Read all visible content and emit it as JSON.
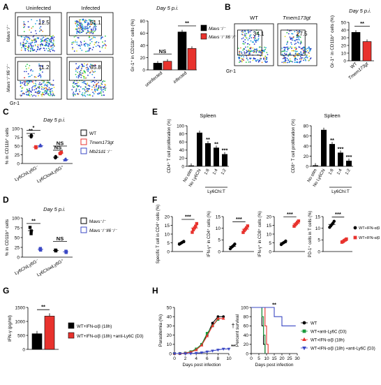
{
  "panels": [
    {
      "id": "A",
      "letter": "A"
    },
    {
      "id": "B",
      "letter": "B"
    },
    {
      "id": "C",
      "letter": "C"
    },
    {
      "id": "D",
      "letter": "D"
    },
    {
      "id": "E",
      "letter": "E"
    },
    {
      "id": "F",
      "letter": "F"
    },
    {
      "id": "G",
      "letter": "G"
    },
    {
      "id": "H",
      "letter": "H"
    }
  ],
  "facs": {
    "A": {
      "col_headers": [
        "Uninfected",
        "Infected"
      ],
      "row_labels": [
        "Mavs⁻/⁻",
        "Mavs⁻/⁻Il6⁻/⁻"
      ],
      "values": [
        "12.5",
        "61.1",
        "11.2",
        "35.8"
      ],
      "y_axis_label": "Gr-1"
    },
    "B": {
      "col_headers": [
        "WT",
        "Tmem173gt"
      ],
      "values": [
        "34.1",
        "27.5"
      ],
      "y_axis_label": "Gr-1"
    }
  },
  "chart_data": [
    {
      "id": "A-bar",
      "type": "bar",
      "title": "Day 5 p.i.",
      "ylabel": "Gr-1⁺ in CD11b⁺ cells (%)",
      "ylim": [
        0,
        80
      ],
      "yticks": [
        0,
        20,
        40,
        60,
        80
      ],
      "categories": [
        "uninfected",
        "infected"
      ],
      "series": [
        {
          "name": "Mavs⁻/⁻",
          "color": "#000000",
          "values": [
            11,
            62
          ]
        },
        {
          "name": "Mavs⁻/⁻Il6⁻/⁻",
          "color": "#e8322d",
          "values": [
            14,
            35
          ]
        }
      ],
      "annotations": [
        "NS",
        "**"
      ],
      "legend": "right"
    },
    {
      "id": "B-bar",
      "type": "bar",
      "title": "Day 5 p.i.",
      "ylabel": "Gr-1⁺ in CD11b⁺ cells (%)",
      "ylim": [
        0,
        50
      ],
      "yticks": [
        0,
        10,
        20,
        30,
        40,
        50
      ],
      "categories": [
        "WT",
        "Tmem173gt"
      ],
      "values": [
        37,
        25
      ],
      "colors": [
        "#000000",
        "#e8322d"
      ],
      "annotations": [
        "**"
      ]
    },
    {
      "id": "C-scatter",
      "type": "scatter",
      "title": "Day 5 p.i.",
      "ylabel": "% in CD11b⁺ cells",
      "ylim": [
        0,
        100
      ],
      "yticks": [
        0,
        25,
        50,
        75,
        100
      ],
      "categories": [
        "Ly6ChiLy6G⁻",
        "Ly6ClowLy6G⁺"
      ],
      "series": [
        {
          "name": "WT",
          "color": "#000000",
          "marker": "circle",
          "values": [
            [
              76,
              79,
              81
            ],
            [
              16,
              18,
              20
            ]
          ]
        },
        {
          "name": "Tmem173gt",
          "color": "#e8322d",
          "marker": "square",
          "values": [
            [
              45,
              47,
              48
            ],
            [
              28,
              30,
              32
            ]
          ]
        },
        {
          "name": "Mb21d1⁻/⁻",
          "color": "#3b48c4",
          "marker": "triangle",
          "values": [
            [
              50,
              51,
              52
            ],
            [
              10,
              11,
              12
            ]
          ]
        }
      ],
      "annotations": [
        "*",
        "**",
        "NS",
        "NS"
      ],
      "legend": "right"
    },
    {
      "id": "D-scatter",
      "type": "scatter",
      "title": "Day 5 p.i.",
      "ylabel": "% in CD11b⁺ cells",
      "ylim": [
        0,
        100
      ],
      "yticks": [
        0,
        25,
        50,
        75,
        100
      ],
      "categories": [
        "Ly6ChiLy6G⁻",
        "Ly6ClowLy6G⁺"
      ],
      "series": [
        {
          "name": "Mavs⁻/⁻",
          "color": "#000000",
          "marker": "square",
          "values": [
            [
              60,
              67,
              76
            ],
            [
              16,
              17,
              18
            ]
          ]
        },
        {
          "name": "Mavs⁻/⁻Il6⁻/⁻",
          "color": "#3b48c4",
          "marker": "square",
          "values": [
            [
              18,
              20,
              22
            ],
            [
              12,
              14,
              15
            ]
          ]
        }
      ],
      "annotations": [
        "**",
        "NS"
      ],
      "legend": "right"
    },
    {
      "id": "E-cd4",
      "type": "bar",
      "title": "Spleen",
      "ylabel": "CD4⁺ T cell proliferation (%)",
      "ylim": [
        0,
        100
      ],
      "yticks": [
        0,
        20,
        40,
        60,
        80,
        100
      ],
      "categories": [
        "No stim",
        "No Ly6Chi",
        "1:8",
        "1:4",
        "1:2"
      ],
      "values": [
        2,
        83,
        57,
        46,
        30
      ],
      "annotations": [
        "**",
        "**",
        "***"
      ],
      "xgroup_label": "Ly6Chi:T"
    },
    {
      "id": "E-cd8",
      "type": "bar",
      "title": "Spleen",
      "ylabel": "CD8⁺ T cell proliferation (%)",
      "ylim": [
        0,
        80
      ],
      "yticks": [
        0,
        20,
        40,
        60,
        80
      ],
      "categories": [
        "No stim",
        "No Ly6Chi",
        "1:8",
        "1:4",
        "1:2"
      ],
      "values": [
        2,
        72,
        44,
        27,
        11
      ],
      "annotations": [
        "**",
        "***",
        "***"
      ],
      "xgroup_label": "Ly6Chi:T"
    },
    {
      "id": "F-1",
      "type": "scatter",
      "ylabel": "Specific T cell in CD4⁺ cells (%)",
      "ylim": [
        0,
        20
      ],
      "yticks": [
        0,
        5,
        10,
        15,
        20
      ],
      "series": [
        {
          "name": "WT+IFN-α/β (18h)",
          "color": "#000000",
          "values": [
            4.2,
            4.6,
            5.0,
            5.4,
            5.8
          ]
        },
        {
          "name": "WT+IFN-α/β (18h) +anti-Ly6C",
          "color": "#e8322d",
          "values": [
            11,
            12.5,
            13.5,
            14.5,
            16
          ]
        }
      ],
      "annotations": [
        "***"
      ]
    },
    {
      "id": "F-2",
      "type": "scatter",
      "ylabel": "IFN-γ⁺ in CD4⁺ cells (%)",
      "ylim": [
        0,
        15
      ],
      "yticks": [
        0,
        5,
        10,
        15
      ],
      "series": [
        {
          "name": "WT+IFN-α/β (18h)",
          "color": "#000000",
          "values": [
            1.2,
            1.8,
            2.2,
            2.6,
            3.2
          ]
        },
        {
          "name": "WT+IFN-α/β (18h) +anti-Ly6C",
          "color": "#e8322d",
          "values": [
            8.2,
            9.0,
            9.6,
            10.2,
            11.0
          ]
        }
      ],
      "annotations": [
        "***"
      ]
    },
    {
      "id": "F-3",
      "type": "scatter",
      "ylabel": "IFN-γ⁺ in CD8⁺ cells (%)",
      "ylim": [
        0,
        20
      ],
      "yticks": [
        0,
        5,
        10,
        15,
        20
      ],
      "series": [
        {
          "name": "WT+IFN-α/β (18h)",
          "color": "#000000",
          "values": [
            4.0,
            4.6,
            5.0,
            5.4,
            6.0
          ]
        },
        {
          "name": "WT+IFN-α/β (18h) +anti-Ly6C",
          "color": "#e8322d",
          "values": [
            14.5,
            15.3,
            16,
            16.8,
            17.5
          ]
        }
      ],
      "annotations": [
        "***"
      ]
    },
    {
      "id": "F-4",
      "type": "scatter",
      "ylabel": "PD-1⁺ cells in T cells (%)",
      "ylim": [
        0,
        15
      ],
      "yticks": [
        0,
        5,
        10,
        15
      ],
      "series": [
        {
          "name": "WT+IFN-α/β (18h)",
          "color": "#000000",
          "values": [
            10.4,
            11.0,
            11.6,
            12.2,
            13.0
          ]
        },
        {
          "name": "WT+IFN-α/β (18h) +anti-Ly6C",
          "color": "#e8322d",
          "values": [
            4.0,
            4.3,
            4.7,
            5.0,
            5.4
          ]
        }
      ],
      "annotations": [
        "***"
      ],
      "legend": "right"
    },
    {
      "id": "G-bar",
      "type": "bar",
      "ylabel": "IFN-γ (pg/ml)",
      "ylim": [
        0,
        1500
      ],
      "yticks": [
        0,
        500,
        1000,
        1500
      ],
      "categories": [
        "WT+IFN-α/β (18h)",
        "WT+IFN-α/β (18h) +anti-Ly6C (D3)"
      ],
      "values": [
        560,
        1190
      ],
      "colors": [
        "#000000",
        "#e8322d"
      ],
      "annotations": [
        "**"
      ],
      "legend": "right"
    },
    {
      "id": "H-para",
      "type": "line",
      "xlabel": "Days post infection",
      "ylabel": "Parasitemia (%)",
      "xlim": [
        0,
        10
      ],
      "ylim": [
        0,
        50
      ],
      "xticks": [
        0,
        2,
        4,
        6,
        8,
        10
      ],
      "yticks": [
        0,
        10,
        20,
        30,
        40,
        50
      ],
      "series": [
        {
          "name": "WT",
          "color": "#000000",
          "marker": "circle",
          "x": [
            0,
            1,
            2,
            3,
            4,
            5,
            6,
            7,
            8,
            9
          ],
          "y": [
            0,
            0,
            0.5,
            2,
            5,
            10,
            20,
            33,
            40,
            40
          ]
        },
        {
          "name": "WT+anti-Ly6C (D3)",
          "color": "#1a9a3a",
          "marker": "square",
          "x": [
            0,
            1,
            2,
            3,
            4,
            5,
            6,
            7,
            8
          ],
          "y": [
            0,
            0,
            0.5,
            2,
            5,
            10,
            22,
            30,
            37
          ]
        },
        {
          "name": "WT+IFN-α/β (18h)",
          "color": "#e8322d",
          "marker": "triangle",
          "x": [
            0,
            1,
            2,
            3,
            4,
            5,
            6,
            7,
            8,
            9
          ],
          "y": [
            0,
            0,
            0.5,
            1.5,
            4,
            9,
            19,
            30,
            38,
            38
          ]
        },
        {
          "name": "WT+IFN-α/β (18h) +anti-Ly6C (D3)",
          "color": "#3b48c4",
          "marker": "triangle-down",
          "x": [
            0,
            1,
            2,
            3,
            4,
            5,
            6,
            7,
            8,
            9,
            10
          ],
          "y": [
            0,
            0,
            0,
            0,
            0.5,
            1,
            2,
            3,
            4,
            5,
            5
          ]
        }
      ],
      "annotations": [
        "†",
        "**"
      ]
    },
    {
      "id": "H-surv",
      "type": "line",
      "xlabel": "Days post infection",
      "ylabel": "Percent survival",
      "xlim": [
        0,
        30
      ],
      "ylim": [
        0,
        100
      ],
      "xticks": [
        0,
        5,
        10,
        15,
        20,
        25,
        30
      ],
      "yticks": [
        0,
        20,
        40,
        60,
        80,
        100
      ],
      "series": [
        {
          "name": "WT",
          "color": "#000000",
          "x": [
            0,
            7,
            7,
            8,
            8,
            9,
            9
          ],
          "y": [
            100,
            100,
            60,
            60,
            20,
            20,
            0
          ]
        },
        {
          "name": "WT+anti-Ly6C (D3)",
          "color": "#1a9a3a",
          "x": [
            0,
            7,
            7,
            8,
            8,
            9,
            9
          ],
          "y": [
            100,
            100,
            80,
            80,
            40,
            40,
            0
          ]
        },
        {
          "name": "WT+IFN-α/β (18h)",
          "color": "#e8322d",
          "x": [
            0,
            9,
            9,
            10,
            10,
            11,
            11
          ],
          "y": [
            100,
            100,
            60,
            60,
            20,
            20,
            0
          ]
        },
        {
          "name": "WT+IFN-α/β (18h) +anti-Ly6C (D3)",
          "color": "#3b48c4",
          "x": [
            0,
            15,
            15,
            20,
            20,
            22,
            22,
            29
          ],
          "y": [
            100,
            100,
            80,
            80,
            60,
            60,
            60,
            60
          ]
        }
      ],
      "annotations": [
        "**"
      ],
      "legend": "right"
    }
  ]
}
